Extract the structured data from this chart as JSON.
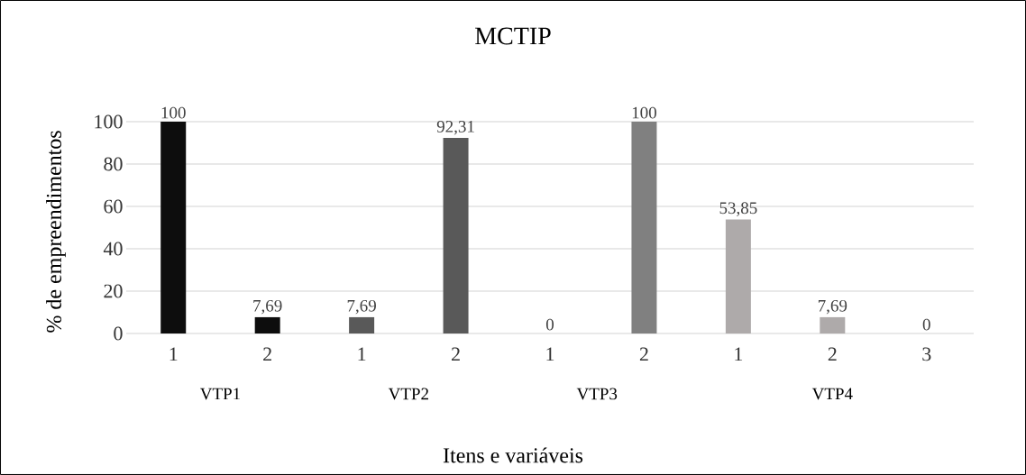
{
  "chart_data": {
    "type": "bar",
    "title": "MCTIP",
    "xlabel": "Itens e variáveis",
    "ylabel": "% de empreendimentos",
    "categories": [
      "1",
      "2",
      "1",
      "2",
      "1",
      "2",
      "1",
      "2",
      "3"
    ],
    "values": [
      100,
      7.69,
      7.69,
      92.31,
      0,
      100,
      53.85,
      7.69,
      0
    ],
    "value_labels": [
      "100",
      "7,69",
      "7,69",
      "92,31",
      "0",
      "100",
      "53,85",
      "7,69",
      "0"
    ],
    "colors": [
      "#0d0d0d",
      "#0d0d0d",
      "#595959",
      "#595959",
      "#808080",
      "#808080",
      "#aeaaaa",
      "#aeaaaa",
      "#aeaaaa"
    ],
    "annotations": [
      "VTP1",
      "VTP2",
      "VTP3",
      "VTP4"
    ],
    "ylim": [
      0,
      100
    ],
    "yticks": [
      0,
      20,
      40,
      60,
      80,
      100
    ],
    "grid": "y"
  }
}
